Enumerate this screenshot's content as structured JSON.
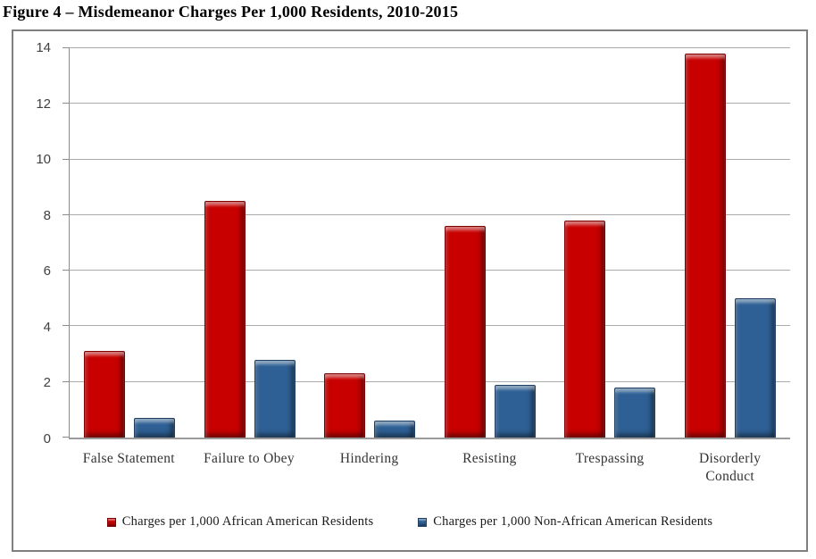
{
  "title": "Figure 4 – Misdemeanor Charges Per 1,000 Residents, 2010-2015",
  "chart_data": {
    "type": "bar",
    "title": "Figure 4 – Misdemeanor Charges Per 1,000 Residents, 2010-2015",
    "categories": [
      "False Statement",
      "Failure to Obey",
      "Hindering",
      "Resisting",
      "Trespassing",
      "Disorderly Conduct"
    ],
    "series": [
      {
        "name": "Charges per 1,000 African American Residents",
        "color": "#c80000",
        "border_color": "#7f0000",
        "values": [
          3.1,
          8.5,
          2.3,
          7.6,
          7.8,
          13.8
        ]
      },
      {
        "name": "Charges per 1,000 Non-African American Residents",
        "color": "#2e6095",
        "border_color": "#1f4064",
        "values": [
          0.7,
          2.8,
          0.6,
          1.9,
          1.8,
          5.0
        ]
      }
    ],
    "xlabel": "",
    "ylabel": "",
    "ylim": [
      0,
      14
    ],
    "yticks": [
      0,
      2,
      4,
      6,
      8,
      10,
      12,
      14
    ],
    "grid": true,
    "gridline_color": "#ababab",
    "legend_position": "bottom"
  }
}
